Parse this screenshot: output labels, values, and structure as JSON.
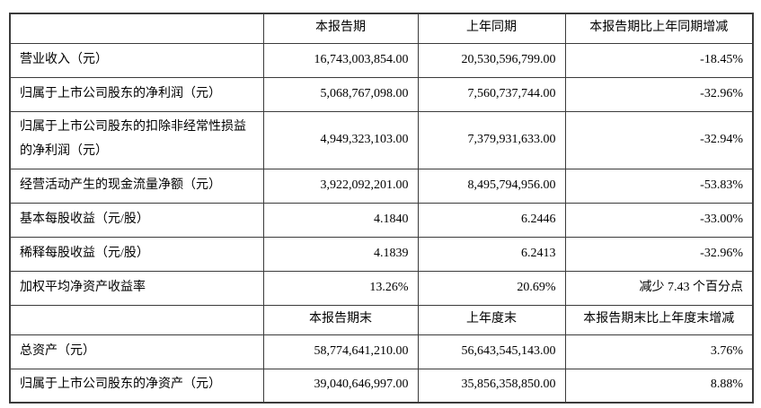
{
  "colors": {
    "header_bg": "#d8d8d8",
    "label_bg": "#d8d8d8",
    "border": "#3b3b3b",
    "cell_bg": "#ffffff",
    "text": "#000000"
  },
  "table": {
    "section1": {
      "header": {
        "label": "",
        "period": "本报告期",
        "prior": "上年同期",
        "change": "本报告期比上年同期增减"
      },
      "rows": [
        {
          "label": "营业收入（元）",
          "current": "16,743,003,854.00",
          "prior": "20,530,596,799.00",
          "change": "-18.45%"
        },
        {
          "label": "归属于上市公司股东的净利润（元）",
          "current": "5,068,767,098.00",
          "prior": "7,560,737,744.00",
          "change": "-32.96%"
        },
        {
          "label": "归属于上市公司股东的扣除非经常性损益的净利润（元）",
          "current": "4,949,323,103.00",
          "prior": "7,379,931,633.00",
          "change": "-32.94%"
        },
        {
          "label": "经营活动产生的现金流量净额（元）",
          "current": "3,922,092,201.00",
          "prior": "8,495,794,956.00",
          "change": "-53.83%"
        },
        {
          "label": "基本每股收益（元/股）",
          "current": "4.1840",
          "prior": "6.2446",
          "change": "-33.00%"
        },
        {
          "label": "稀释每股收益（元/股）",
          "current": "4.1839",
          "prior": "6.2413",
          "change": "-32.96%"
        },
        {
          "label": "加权平均净资产收益率",
          "current": "13.26%",
          "prior": "20.69%",
          "change": "减少 7.43 个百分点"
        }
      ]
    },
    "section2": {
      "header": {
        "label": "",
        "period": "本报告期末",
        "prior": "上年度末",
        "change": "本报告期末比上年度末增减"
      },
      "rows": [
        {
          "label": "总资产（元）",
          "current": "58,774,641,210.00",
          "prior": "56,643,545,143.00",
          "change": "3.76%"
        },
        {
          "label": "归属于上市公司股东的净资产（元）",
          "current": "39,040,646,997.00",
          "prior": "35,856,358,850.00",
          "change": "8.88%"
        }
      ]
    }
  }
}
